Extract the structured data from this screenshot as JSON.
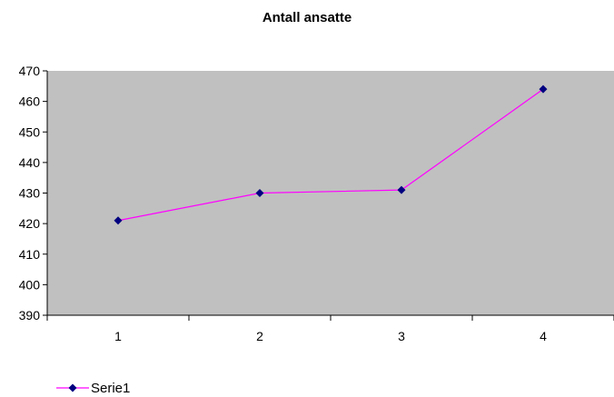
{
  "chart_data": {
    "type": "line",
    "title": "Antall ansatte",
    "x": [
      1,
      2,
      3,
      4
    ],
    "categories": [
      "1",
      "2",
      "3",
      "4"
    ],
    "series": [
      {
        "name": "Serie1",
        "values": [
          421,
          430,
          431,
          464
        ]
      }
    ],
    "ylim": [
      390,
      470
    ],
    "yticks": [
      390,
      400,
      410,
      420,
      430,
      440,
      450,
      460,
      470
    ],
    "grid": false,
    "legend_position": "bottom-left",
    "colors": {
      "line": "#ff00ff",
      "marker": "#000080",
      "plot_background": "#c0c0c0",
      "axis": "#000000"
    }
  }
}
